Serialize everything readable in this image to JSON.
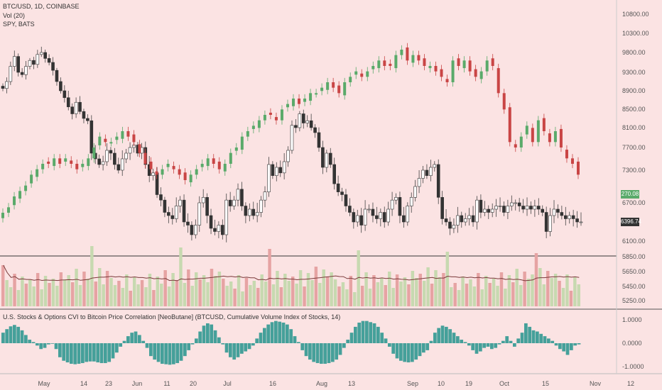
{
  "legend": {
    "main": "BTC/USD, 1D, COINBASE",
    "vol": "Vol (20)",
    "spy": "SPY, BATS"
  },
  "oscillator": {
    "title": "U.S. Stocks & Options CVI to Bitcoin Price Correlation [NeoButane] (BTCUSD, Cumulative Volume Index of Stocks, 14)",
    "ticks": [
      "1.0000",
      "0.0000",
      "-1.0000"
    ]
  },
  "badges": {
    "spy_price": "270.08",
    "btc_price": "6396.74"
  },
  "colors": {
    "background": "#fbe3e3",
    "btc_up": "#ffffff",
    "btc_down": "#333333",
    "spy_up": "#5aaa6a",
    "spy_down": "#c94545",
    "vol_up": "#c7d9b0",
    "vol_down": "#e6a3a3",
    "osc": "#45a09a",
    "vol_ma": "#7a3a3a"
  },
  "chart_data": {
    "type": "candlestick",
    "price_axis": {
      "ticks": [
        10800,
        10300,
        9800,
        9300,
        8900,
        8500,
        8100,
        7700,
        7300,
        6700,
        6100,
        5850,
        5650,
        5450,
        5250
      ],
      "tick_labels": [
        "10800.00",
        "10300.00",
        "9800.00",
        "9300.00",
        "8900.00",
        "8500.00",
        "8100.00",
        "7700.00",
        "7300.00",
        "6700.00",
        "6100.00",
        "5850.00",
        "5650.00",
        "5450.00",
        "5250.00"
      ]
    },
    "x_axis": {
      "labels": [
        "May",
        "14",
        "23",
        "Jun",
        "11",
        "20",
        "Jul",
        "16",
        "Aug",
        "13",
        "Sep",
        "10",
        "19",
        "Oct",
        "15",
        "Nov",
        "12"
      ]
    },
    "btc_close": [
      8950,
      9100,
      9450,
      9700,
      9300,
      9250,
      9450,
      9600,
      9500,
      9750,
      9800,
      9650,
      9550,
      9350,
      9100,
      8900,
      8750,
      8550,
      8400,
      8650,
      8450,
      8300,
      8250,
      7600,
      7500,
      7400,
      7450,
      7650,
      7600,
      7400,
      7300,
      7500,
      7600,
      7700,
      7750,
      7600,
      7700,
      7400,
      7200,
      7250,
      6850,
      6750,
      6550,
      6500,
      6450,
      6650,
      6750,
      6400,
      6350,
      6200,
      6350,
      6700,
      6800,
      6500,
      6300,
      6250,
      6350,
      6200,
      6750,
      6650,
      6750,
      6950,
      6650,
      6500,
      6600,
      6500,
      6550,
      6750,
      6900,
      7400,
      7200,
      7350,
      7250,
      7450,
      7650,
      8150,
      8100,
      8400,
      8200,
      8250,
      8100,
      8000,
      7700,
      7350,
      7600,
      7400,
      7050,
      6900,
      6850,
      6650,
      6550,
      6400,
      6500,
      6350,
      6600,
      6600,
      6500,
      6450,
      6550,
      6400,
      6600,
      6750,
      6800,
      6500,
      6400,
      6650,
      6800,
      7000,
      7150,
      7300,
      7200,
      7350,
      7400,
      6800,
      6450,
      6400,
      6300,
      6350,
      6500,
      6400,
      6450,
      6500,
      6400,
      6750,
      6550,
      6600,
      6550,
      6600,
      6650,
      6650,
      6550,
      6650,
      6700,
      6700,
      6650,
      6600,
      6650,
      6600,
      6650,
      6600,
      6550,
      6250,
      6500,
      6600,
      6550,
      6500,
      6450,
      6500,
      6450,
      6400,
      6400
    ],
    "spy_close": [
      263,
      264,
      266,
      267,
      268,
      270,
      271,
      272,
      272,
      273,
      272,
      273,
      272,
      271,
      272,
      273,
      275,
      277,
      276,
      276,
      277,
      278,
      277,
      276,
      274,
      272,
      271,
      270,
      271,
      272,
      271,
      270,
      269,
      270,
      271,
      272,
      273,
      272,
      271,
      272,
      274,
      275,
      277,
      278,
      279,
      280,
      281,
      281,
      280,
      282,
      283,
      284,
      283,
      284,
      285,
      285,
      286,
      287,
      286,
      285,
      287,
      288,
      289,
      288,
      289,
      290,
      291,
      290,
      290,
      292,
      293,
      291,
      292,
      291,
      290,
      290,
      289,
      288,
      287,
      291,
      290,
      291,
      289,
      288,
      289,
      291,
      290,
      285,
      282,
      276,
      275,
      277,
      279,
      276,
      280,
      278,
      276,
      278,
      275,
      273,
      272,
      270
    ],
    "osc_values": [
      0.45,
      0.6,
      0.72,
      0.78,
      0.7,
      0.55,
      0.35,
      0.15,
      0.05,
      -0.1,
      -0.25,
      -0.2,
      -0.05,
      0.0,
      -0.25,
      -0.6,
      -0.75,
      -0.82,
      -0.88,
      -0.9,
      -0.88,
      -0.85,
      -0.8,
      -0.78,
      -0.78,
      -0.82,
      -0.85,
      -0.85,
      -0.8,
      -0.65,
      -0.4,
      -0.15,
      0.1,
      0.3,
      0.45,
      0.5,
      0.35,
      0.1,
      -0.2,
      -0.55,
      -0.7,
      -0.8,
      -0.88,
      -0.9,
      -0.92,
      -0.9,
      -0.85,
      -0.75,
      -0.55,
      -0.3,
      -0.05,
      0.2,
      0.5,
      0.75,
      0.85,
      0.8,
      0.55,
      0.25,
      -0.05,
      -0.4,
      -0.6,
      -0.7,
      -0.6,
      -0.45,
      -0.35,
      -0.25,
      -0.1,
      0.2,
      0.45,
      0.65,
      0.8,
      0.9,
      0.95,
      0.92,
      0.88,
      0.8,
      0.6,
      0.3,
      0.05,
      -0.3,
      -0.55,
      -0.7,
      -0.8,
      -0.85,
      -0.88,
      -0.88,
      -0.85,
      -0.8,
      -0.7,
      -0.5,
      -0.2,
      0.15,
      0.45,
      0.7,
      0.88,
      0.95,
      0.95,
      0.9,
      0.85,
      0.7,
      0.45,
      0.2,
      -0.15,
      -0.45,
      -0.65,
      -0.75,
      -0.8,
      -0.82,
      -0.8,
      -0.7,
      -0.55,
      -0.4,
      -0.3,
      0.1,
      0.45,
      0.65,
      0.75,
      0.7,
      0.6,
      0.45,
      0.3,
      0.15,
      0.05,
      -0.1,
      -0.3,
      -0.45,
      -0.35,
      -0.2,
      -0.15,
      -0.25,
      -0.2,
      -0.05,
      0.1,
      0.3,
      0.1,
      -0.15,
      0.2,
      0.45,
      0.85,
      0.7,
      0.55,
      0.5,
      0.4,
      0.3,
      0.2,
      0.1,
      -0.1,
      -0.25,
      -0.35,
      -0.5,
      -0.3,
      -0.1,
      -0.05
    ]
  }
}
